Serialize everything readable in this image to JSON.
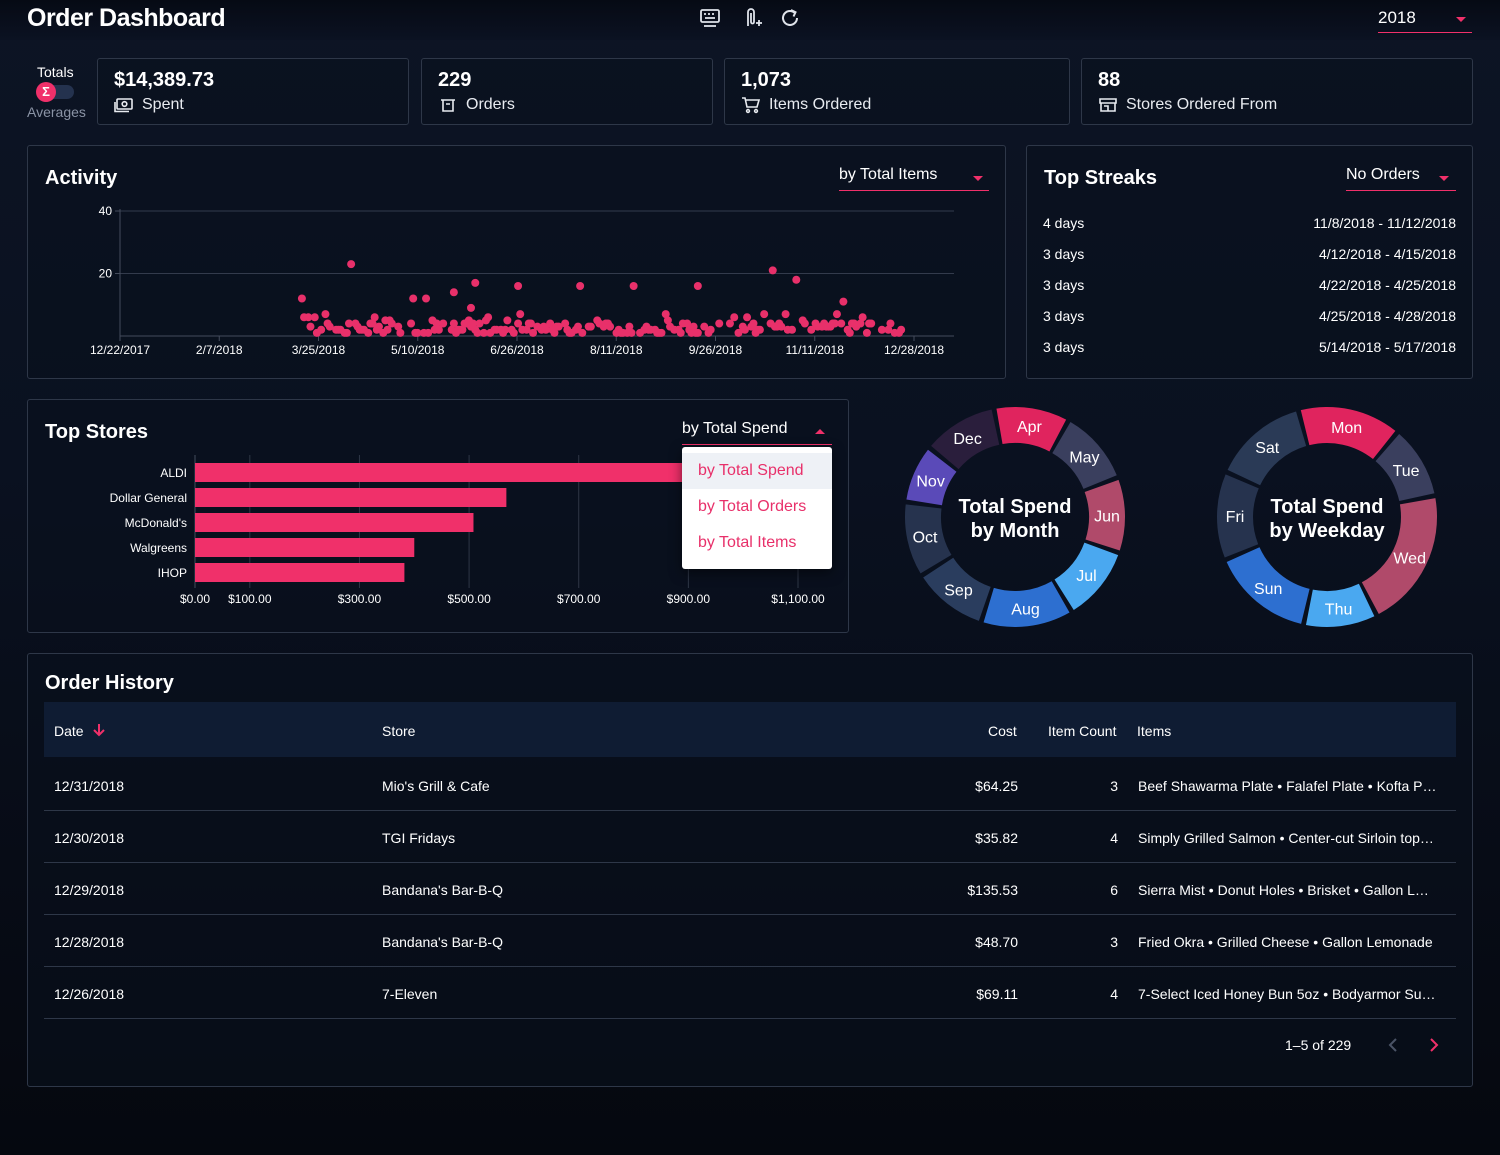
{
  "header": {
    "title": "Order Dashboard",
    "icons": [
      "keyboard-icon",
      "attachment-add-icon",
      "refresh-icon"
    ],
    "year": "2018"
  },
  "toggle": {
    "totals_label": "Totals",
    "averages_label": "Averages",
    "knob_symbol": "Σ"
  },
  "kpis": [
    {
      "value": "$14,389.73",
      "label": "Spent",
      "icon": "money-icon"
    },
    {
      "value": "229",
      "label": "Orders",
      "icon": "basket-icon"
    },
    {
      "value": "1,073",
      "label": "Items Ordered",
      "icon": "cart-icon"
    },
    {
      "value": "88",
      "label": "Stores Ordered From",
      "icon": "store-icon"
    }
  ],
  "activity": {
    "title": "Activity",
    "select_value": "by Total Items"
  },
  "activity_chart": {
    "type": "scatter",
    "y_ticks": [
      "40",
      "20"
    ],
    "x_ticks": [
      "12/22/2017",
      "2/7/2018",
      "3/25/2018",
      "5/10/2018",
      "6/26/2018",
      "8/11/2018",
      "9/26/2018",
      "11/11/2018",
      "12/28/2018"
    ],
    "ylim": [
      0,
      40
    ],
    "point_color": "#e8306a",
    "highlights": [
      {
        "date": "2018-04-09",
        "value": 23
      },
      {
        "date": "2018-06-06",
        "value": 17
      },
      {
        "date": "2018-06-26",
        "value": 16
      },
      {
        "date": "2018-07-25",
        "value": 16
      },
      {
        "date": "2018-08-19",
        "value": 16
      },
      {
        "date": "2018-09-18",
        "value": 16
      },
      {
        "date": "2018-10-23",
        "value": 21
      },
      {
        "date": "2018-11-03",
        "value": 18
      },
      {
        "date": "2018-03-17",
        "value": 12
      },
      {
        "date": "2018-05-08",
        "value": 12
      },
      {
        "date": "2018-05-14",
        "value": 12
      },
      {
        "date": "2018-05-27",
        "value": 14
      },
      {
        "date": "2018-06-04",
        "value": 9
      },
      {
        "date": "2018-11-25",
        "value": 11
      }
    ]
  },
  "streaks": {
    "title": "Top Streaks",
    "select_value": "No Orders",
    "rows": [
      {
        "length": "4 days",
        "range": "11/8/2018 - 11/12/2018"
      },
      {
        "length": "3 days",
        "range": "4/12/2018 - 4/15/2018"
      },
      {
        "length": "3 days",
        "range": "4/22/2018 - 4/25/2018"
      },
      {
        "length": "3 days",
        "range": "4/25/2018 - 4/28/2018"
      },
      {
        "length": "3 days",
        "range": "5/14/2018 - 5/17/2018"
      }
    ]
  },
  "top_stores": {
    "title": "Top Stores",
    "select_value": "by Total Spend",
    "options": [
      "by Total Spend",
      "by Total Orders",
      "by Total Items"
    ]
  },
  "stores_chart": {
    "type": "bar",
    "orientation": "horizontal",
    "categories": [
      "ALDI",
      "Dollar General",
      "McDonald's",
      "Walgreens",
      "IHOP"
    ],
    "values": [
      1060,
      568,
      508,
      400,
      382
    ],
    "x_ticks": [
      "$0.00",
      "$100.00",
      "$300.00",
      "$500.00",
      "$700.00",
      "$900.00",
      "$1,100.00"
    ],
    "x_tick_values": [
      0,
      100,
      300,
      500,
      700,
      900,
      1100
    ],
    "xlim": [
      0,
      1100
    ],
    "bar_color": "#f0306a"
  },
  "month_donut": {
    "type": "pie",
    "title_line1": "Total Spend",
    "title_line2": "by Month",
    "slices": [
      {
        "label": "Apr",
        "value": 9,
        "color": "#e0245e"
      },
      {
        "label": "May",
        "value": 9,
        "color": "#3a3f5e"
      },
      {
        "label": "Jun",
        "value": 9,
        "color": "#b04a6a"
      },
      {
        "label": "Jul",
        "value": 9,
        "color": "#4aa8f0"
      },
      {
        "label": "Aug",
        "value": 11,
        "color": "#2d6fd0"
      },
      {
        "label": "Sep",
        "value": 9,
        "color": "#2a3d5e"
      },
      {
        "label": "Oct",
        "value": 9,
        "color": "#26334e"
      },
      {
        "label": "Nov",
        "value": 7,
        "color": "#5a4ab8"
      },
      {
        "label": "Dec",
        "value": 9,
        "color": "#2a1e3c"
      }
    ]
  },
  "weekday_donut": {
    "type": "pie",
    "title_line1": "Total Spend",
    "title_line2": "by Weekday",
    "slices": [
      {
        "label": "Mon",
        "value": 14,
        "color": "#e0245e"
      },
      {
        "label": "Tue",
        "value": 10,
        "color": "#3a3f5e"
      },
      {
        "label": "Wed",
        "value": 19,
        "color": "#b04a6a"
      },
      {
        "label": "Thu",
        "value": 10,
        "color": "#4aa8f0"
      },
      {
        "label": "Sun",
        "value": 14,
        "color": "#2d6fd0"
      },
      {
        "label": "Fri",
        "value": 12,
        "color": "#26334e"
      },
      {
        "label": "Sat",
        "value": 13,
        "color": "#2a3a56"
      }
    ]
  },
  "order_history": {
    "title": "Order History",
    "columns": {
      "date": "Date",
      "store": "Store",
      "cost": "Cost",
      "count": "Item Count",
      "items": "Items"
    },
    "rows": [
      {
        "date": "12/31/2018",
        "store": "Mio's Grill & Cafe",
        "cost": "$64.25",
        "count": "3",
        "items": "Beef Shawarma Plate • Falafel Plate • Kofta P…"
      },
      {
        "date": "12/30/2018",
        "store": "TGI Fridays",
        "cost": "$35.82",
        "count": "4",
        "items": "Simply Grilled Salmon • Center-cut Sirloin top…"
      },
      {
        "date": "12/29/2018",
        "store": "Bandana's Bar-B-Q",
        "cost": "$135.53",
        "count": "6",
        "items": "Sierra Mist • Donut Holes • Brisket • Gallon L…"
      },
      {
        "date": "12/28/2018",
        "store": "Bandana's Bar-B-Q",
        "cost": "$48.70",
        "count": "3",
        "items": "Fried Okra • Grilled Cheese • Gallon Lemonade"
      },
      {
        "date": "12/26/2018",
        "store": "7-Eleven",
        "cost": "$69.11",
        "count": "4",
        "items": "7-Select Iced Honey Bun 5oz • Bodyarmor Su…"
      }
    ],
    "pager": "1–5 of 229"
  }
}
